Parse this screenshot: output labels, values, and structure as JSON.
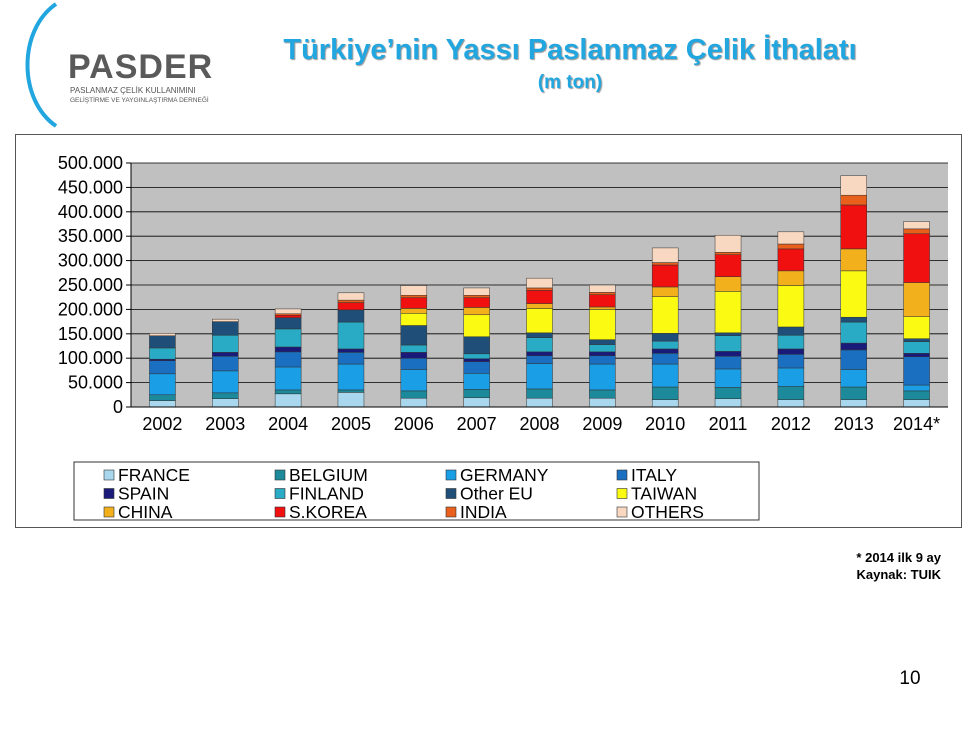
{
  "logo": {
    "name": "PASDER",
    "line1": "PASLANMAZ ÇELİK KULLANIMINI",
    "line2": "GELİŞTİRME VE YAYGINLAŞTIRMA DERNEĞİ"
  },
  "header": {
    "title": "Türkiye’nin Yassı Paslanmaz Çelik İthalatı",
    "subtitle": "(m ton)"
  },
  "chart_data": {
    "type": "bar",
    "stacked": true,
    "categories": [
      "2002",
      "2003",
      "2004",
      "2005",
      "2006",
      "2007",
      "2008",
      "2009",
      "2010",
      "2011",
      "2012",
      "2013",
      "2014*"
    ],
    "ylim": [
      0,
      500000
    ],
    "yticks": [
      0,
      50000,
      100000,
      150000,
      200000,
      250000,
      300000,
      350000,
      400000,
      450000,
      500000
    ],
    "ytick_labels": [
      "0",
      "50.000",
      "100.000",
      "150.000",
      "200.000",
      "250.000",
      "300.000",
      "350.000",
      "400.000",
      "450.000",
      "500.000"
    ],
    "grid": true,
    "legend_position": "bottom",
    "series": [
      {
        "name": "FRANCE",
        "color": "#a9d8ee",
        "values": [
          13000,
          17000,
          27000,
          30000,
          18000,
          19000,
          18000,
          18000,
          15000,
          17000,
          15000,
          15000,
          15000
        ]
      },
      {
        "name": "BELGIUM",
        "color": "#1c8a9a",
        "values": [
          12000,
          12000,
          8000,
          5000,
          15000,
          17000,
          19000,
          17000,
          26000,
          23000,
          27000,
          26000,
          18000
        ]
      },
      {
        "name": "GERMANY",
        "color": "#1a9ee6",
        "values": [
          43000,
          45000,
          47000,
          53000,
          44000,
          33000,
          52000,
          53000,
          47000,
          38000,
          38000,
          36000,
          12000
        ]
      },
      {
        "name": "ITALY",
        "color": "#1a6fc0",
        "values": [
          27000,
          30000,
          31000,
          24000,
          23000,
          24000,
          16000,
          17000,
          22000,
          26000,
          28000,
          40000,
          58000
        ]
      },
      {
        "name": "SPAIN",
        "color": "#1a1a7a",
        "values": [
          3000,
          8000,
          10000,
          7000,
          12000,
          6000,
          8000,
          8000,
          9000,
          10000,
          11000,
          14000,
          7000
        ]
      },
      {
        "name": "FINLAND",
        "color": "#2aabc5",
        "values": [
          23000,
          35000,
          37000,
          55000,
          15000,
          10000,
          29000,
          15000,
          16000,
          32000,
          28000,
          43000,
          24000
        ]
      },
      {
        "name": "Other EU",
        "color": "#1f4f78",
        "values": [
          25000,
          28000,
          23000,
          25000,
          40000,
          35000,
          10000,
          10000,
          16000,
          6000,
          17000,
          10000,
          6000
        ]
      },
      {
        "name": "TAIWAN",
        "color": "#fafa12",
        "values": [
          0,
          0,
          0,
          0,
          25000,
          45000,
          50000,
          62000,
          75000,
          85000,
          85000,
          95000,
          45000
        ]
      },
      {
        "name": "CHINA",
        "color": "#f2b01c",
        "values": [
          0,
          0,
          0,
          0,
          10000,
          15000,
          10000,
          5000,
          20000,
          30000,
          30000,
          45000,
          70000
        ]
      },
      {
        "name": "S.KOREA",
        "color": "#f01010",
        "values": [
          0,
          0,
          5000,
          15000,
          22000,
          20000,
          27000,
          25000,
          45000,
          45000,
          45000,
          90000,
          100000
        ]
      },
      {
        "name": "INDIA",
        "color": "#e8601c",
        "values": [
          0,
          0,
          3000,
          5000,
          5000,
          5000,
          5000,
          5000,
          5000,
          5000,
          10000,
          20000,
          10000
        ]
      },
      {
        "name": "OTHERS",
        "color": "#f8d8c0",
        "values": [
          5000,
          5000,
          10000,
          15000,
          20000,
          15000,
          20000,
          15000,
          30000,
          35000,
          25000,
          40000,
          15000
        ]
      }
    ]
  },
  "footnotes": {
    "note": "* 2014 ilk 9 ay",
    "source": "Kaynak: TUIK"
  },
  "page": {
    "number": "10"
  }
}
